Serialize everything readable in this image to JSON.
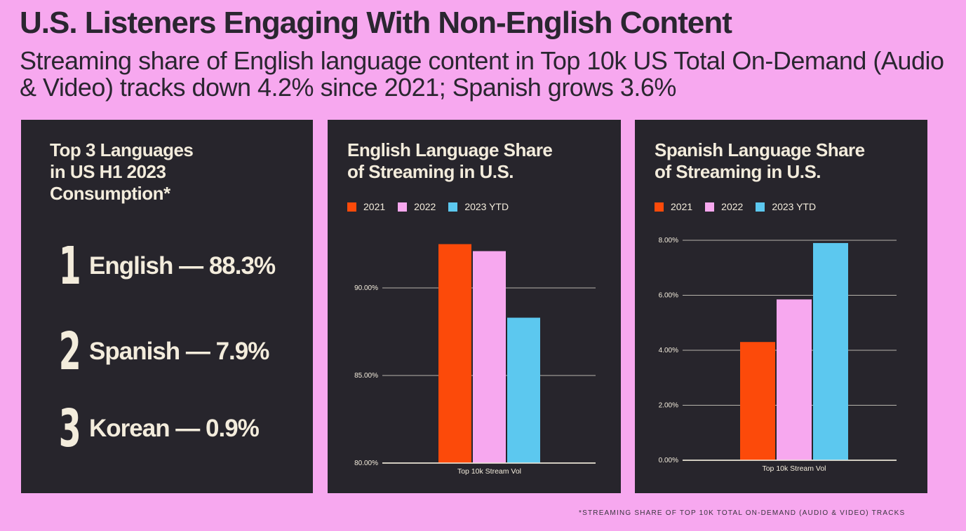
{
  "header": {
    "title": "U.S. Listeners Engaging With Non-English Content",
    "subtitle": "Streaming share of English language content in Top 10k US Total On-Demand (Audio & Video) tracks down 4.2% since 2021; Spanish grows 3.6%"
  },
  "ranking": {
    "title": "Top 3 Languages\nin US H1 2023\nConsumption*",
    "items": [
      {
        "rank": "1",
        "text": "English — 88.3%"
      },
      {
        "rank": "2",
        "text": "Spanish — 7.9%"
      },
      {
        "rank": "3",
        "text": "Korean — 0.9%"
      }
    ]
  },
  "footnote": "*STREAMING SHARE OF TOP 10K TOTAL ON-DEMAND (AUDIO & VIDEO) TRACKS",
  "colors": {
    "background": "#f7a8ef",
    "panel": "#27252c",
    "text_light": "#f3ecdc",
    "series_2021": "#fc4a0a",
    "series_2022": "#f7a8ef",
    "series_2023": "#5cc8ef"
  },
  "chart_data": [
    {
      "type": "bar",
      "title": "English Language Share\nof Streaming in U.S.",
      "categories": [
        "Top 10k Stream Vol"
      ],
      "series": [
        {
          "name": "2021",
          "values": [
            92.5
          ]
        },
        {
          "name": "2022",
          "values": [
            92.1
          ]
        },
        {
          "name": "2023 YTD",
          "values": [
            88.3
          ]
        }
      ],
      "ylim": [
        80,
        92.8
      ],
      "yticks": [
        80,
        85,
        90
      ],
      "ytick_labels": [
        "80.00%",
        "85.00%",
        "90.00%"
      ],
      "legend": "top-left",
      "grid": true
    },
    {
      "type": "bar",
      "title": "Spanish Language Share\nof Streaming in U.S.",
      "categories": [
        "Top 10k Stream Vol"
      ],
      "series": [
        {
          "name": "2021",
          "values": [
            4.3
          ]
        },
        {
          "name": "2022",
          "values": [
            5.85
          ]
        },
        {
          "name": "2023 YTD",
          "values": [
            7.9
          ]
        }
      ],
      "ylim": [
        0,
        8
      ],
      "yticks": [
        0,
        2,
        4,
        6,
        8
      ],
      "ytick_labels": [
        "0.00%",
        "2.00%",
        "4.00%",
        "6.00%",
        "8.00%"
      ],
      "legend": "top-left",
      "grid": true
    }
  ]
}
